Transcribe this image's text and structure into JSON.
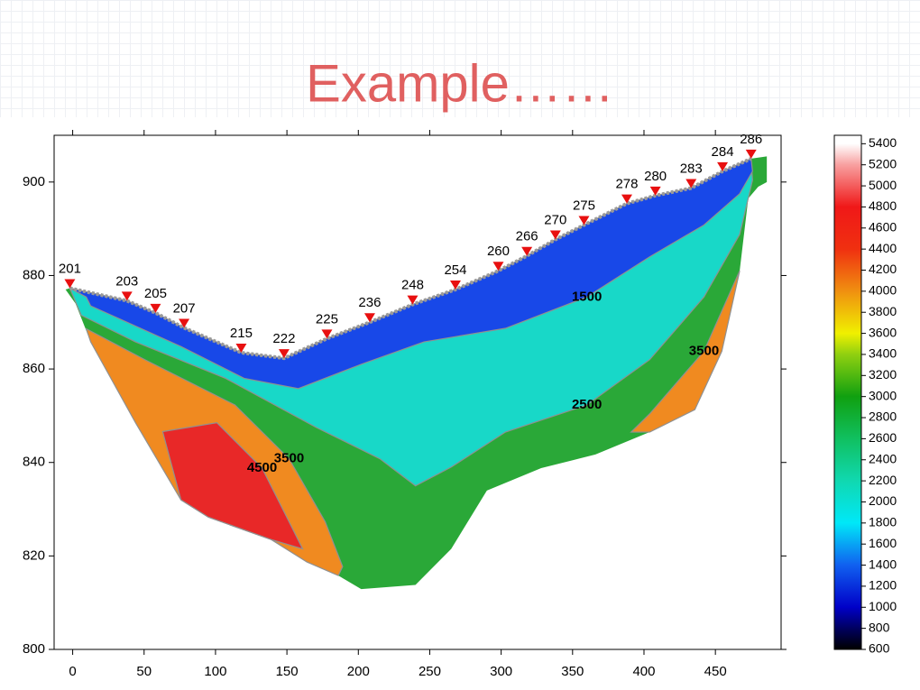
{
  "chart_data": {
    "type": "tomogram",
    "title": "Example……",
    "xlim": [
      -13,
      496
    ],
    "ylim": [
      800,
      910
    ],
    "xticks": [
      0,
      50,
      100,
      150,
      200,
      250,
      300,
      350,
      400,
      450
    ],
    "yticks": [
      800,
      820,
      840,
      860,
      880,
      900
    ],
    "stations": {
      "color": "#e81010",
      "labels": [
        "201",
        "203",
        "205",
        "207",
        "215",
        "222",
        "225",
        "236",
        "248",
        "254",
        "260",
        "266",
        "270",
        "275",
        "278",
        "280",
        "283",
        "284",
        "286"
      ],
      "x": [
        -2,
        38,
        58,
        78,
        118,
        148,
        178,
        208,
        238,
        268,
        298,
        318,
        338,
        358,
        388,
        408,
        433,
        455,
        475
      ],
      "elevation": [
        877.3,
        874.6,
        872,
        868.8,
        863.5,
        862.3,
        866.5,
        870,
        873.8,
        877,
        881,
        884.2,
        887.7,
        890.8,
        895.4,
        897.1,
        898.7,
        902.3,
        905
      ]
    },
    "outline": {
      "color": "#2aa838",
      "x": [
        -5,
        -2,
        38,
        58,
        78,
        118,
        148,
        178,
        208,
        238,
        268,
        298,
        318,
        338,
        358,
        388,
        408,
        433,
        455,
        475,
        486,
        486,
        480,
        473,
        467,
        454.5,
        435.6,
        404,
        366,
        328,
        290,
        265,
        240,
        202,
        186,
        164,
        139,
        95,
        75.8,
        44,
        12.6,
        2
      ],
      "y": [
        877,
        877.3,
        874.6,
        872,
        868.8,
        863.5,
        862.3,
        866.5,
        870,
        873.8,
        877,
        881,
        884.2,
        887.7,
        890.8,
        895.4,
        897.1,
        898.7,
        902.3,
        905,
        905.5,
        900,
        899,
        896.5,
        881,
        863.8,
        851.3,
        846.5,
        841.7,
        838.8,
        834,
        821.5,
        813.8,
        812.9,
        815.8,
        818.7,
        823.5,
        828.3,
        832,
        848.5,
        865.8,
        874
      ]
    },
    "zones": [
      {
        "level": 2500,
        "color": "#18d8c8",
        "x": [
          6,
          44,
          107,
          170.5,
          215,
          240,
          265,
          303,
          360,
          404,
          442,
          467,
          476,
          475,
          455,
          433,
          408,
          388,
          358,
          338,
          318,
          298,
          268,
          238,
          208,
          178,
          148,
          118,
          78,
          58,
          38,
          -2
        ],
        "y": [
          871.5,
          865.8,
          858,
          847.5,
          840.8,
          835,
          839,
          846.5,
          852.3,
          862,
          875.4,
          888.8,
          900.4,
          905,
          902.3,
          898.7,
          897.1,
          895.4,
          890.8,
          887.7,
          884.2,
          881,
          877,
          873.8,
          870,
          866.5,
          862.3,
          863.5,
          868.8,
          872,
          874.6,
          877.3
        ]
      },
      {
        "level": 1500,
        "color": "#1848e8",
        "x": [
          9.5,
          12.6,
          75.8,
          120,
          158,
          202,
          246,
          303,
          360,
          404,
          442,
          467,
          476,
          475,
          455,
          433,
          408,
          388,
          358,
          338,
          318,
          298,
          268,
          238,
          208,
          178,
          148,
          118,
          78,
          58,
          38,
          -2
        ],
        "y": [
          875.4,
          873.5,
          864.8,
          858,
          855.8,
          861,
          865.8,
          868.7,
          875.4,
          884,
          890.8,
          897.5,
          902.3,
          905,
          902.3,
          898.7,
          897.1,
          895.4,
          890.8,
          887.7,
          884.2,
          881,
          877,
          873.8,
          870,
          866.5,
          862.3,
          863.5,
          868.8,
          872,
          874.6,
          877.3
        ]
      },
      {
        "level": 3500,
        "color": "#f08a20",
        "x": [
          9.5,
          50.5,
          113.6,
          151.5,
          176.8,
          189,
          186,
          164,
          139,
          95,
          75.8,
          44,
          12.6
        ],
        "y": [
          868.6,
          862,
          852.3,
          840.8,
          827.3,
          817.7,
          815.8,
          818.7,
          823.5,
          828.3,
          832,
          848.5,
          865.8
        ]
      },
      {
        "level": 4500,
        "color": "#e82828",
        "x": [
          63,
          101,
          132.6,
          151.5,
          161,
          139,
          95,
          75.8
        ],
        "y": [
          846.6,
          848.5,
          838.8,
          827.3,
          821.5,
          823.5,
          828.3,
          832
        ]
      },
      {
        "level": 3500,
        "color": "#f08a20",
        "x": [
          467,
          442,
          404,
          391,
          404,
          435.6,
          454.5
        ],
        "y": [
          881,
          863.8,
          850.4,
          846.5,
          846.5,
          851.3,
          863.8
        ]
      }
    ],
    "colorbar": {
      "lim": [
        600,
        5480
      ],
      "ticks": [
        600,
        800,
        1000,
        1200,
        1400,
        1600,
        1800,
        2000,
        2200,
        2400,
        2600,
        2800,
        3000,
        3200,
        3400,
        3600,
        3800,
        4000,
        4200,
        4400,
        4600,
        4800,
        5000,
        5200,
        5400
      ],
      "scale": [
        [
          600,
          "#000000"
        ],
        [
          800,
          "#000060"
        ],
        [
          1000,
          "#0000c8"
        ],
        [
          1400,
          "#1060f0"
        ],
        [
          1800,
          "#00e8f8"
        ],
        [
          2200,
          "#10d8b0"
        ],
        [
          2600,
          "#10c060"
        ],
        [
          3000,
          "#10a010"
        ],
        [
          3400,
          "#90d010"
        ],
        [
          3600,
          "#f0f000"
        ],
        [
          4000,
          "#f09010"
        ],
        [
          4400,
          "#f03010"
        ],
        [
          4800,
          "#f01818"
        ],
        [
          5200,
          "#f8a0a0"
        ],
        [
          5400,
          "#ffffff"
        ]
      ]
    }
  }
}
